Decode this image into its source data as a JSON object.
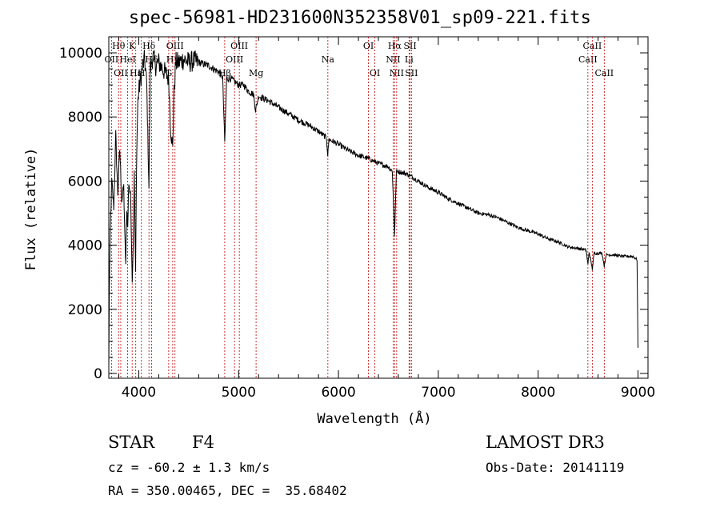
{
  "chart_data": {
    "type": "line",
    "title": "spec-56981-HD231600N352358V01_sp09-221.fits",
    "xlabel": "Wavelength (Å)",
    "ylabel": "Flux (relative)",
    "xlim": [
      3700,
      9100
    ],
    "ylim": [
      -150,
      10500
    ],
    "xticks": [
      4000,
      5000,
      6000,
      7000,
      8000,
      9000
    ],
    "yticks": [
      0,
      2000,
      4000,
      6000,
      8000,
      10000
    ],
    "series": [
      {
        "name": "spectrum",
        "points": [
          [
            3700,
            200
          ],
          [
            3705,
            2500
          ],
          [
            3715,
            4500
          ],
          [
            3730,
            6000
          ],
          [
            3750,
            5200
          ],
          [
            3770,
            7400
          ],
          [
            3790,
            5600
          ],
          [
            3810,
            7000
          ],
          [
            3830,
            5400
          ],
          [
            3850,
            5800
          ],
          [
            3860,
            4300
          ],
          [
            3870,
            3400
          ],
          [
            3880,
            5200
          ],
          [
            3890,
            4500
          ],
          [
            3900,
            6000
          ],
          [
            3920,
            5400
          ],
          [
            3935,
            2800
          ],
          [
            3945,
            4200
          ],
          [
            3955,
            6200
          ],
          [
            3968,
            3100
          ],
          [
            3980,
            7000
          ],
          [
            3990,
            8400
          ],
          [
            4000,
            8800
          ],
          [
            4020,
            9200
          ],
          [
            4040,
            9600
          ],
          [
            4060,
            9800
          ],
          [
            4080,
            9000
          ],
          [
            4090,
            7500
          ],
          [
            4102,
            5800
          ],
          [
            4115,
            9500
          ],
          [
            4140,
            9900
          ],
          [
            4170,
            9600
          ],
          [
            4200,
            9700
          ],
          [
            4240,
            9500
          ],
          [
            4280,
            9300
          ],
          [
            4300,
            9200
          ],
          [
            4320,
            7600
          ],
          [
            4340,
            7000
          ],
          [
            4350,
            8500
          ],
          [
            4370,
            9700
          ],
          [
            4400,
            9700
          ],
          [
            4450,
            9800
          ],
          [
            4500,
            9700
          ],
          [
            4550,
            9750
          ],
          [
            4600,
            9700
          ],
          [
            4650,
            9650
          ],
          [
            4700,
            9600
          ],
          [
            4750,
            9500
          ],
          [
            4800,
            9400
          ],
          [
            4840,
            9250
          ],
          [
            4861,
            7200
          ],
          [
            4880,
            9200
          ],
          [
            4920,
            9200
          ],
          [
            4960,
            9100
          ],
          [
            5000,
            9000
          ],
          [
            5050,
            9000
          ],
          [
            5100,
            8800
          ],
          [
            5150,
            8700
          ],
          [
            5170,
            8200
          ],
          [
            5200,
            8650
          ],
          [
            5300,
            8500
          ],
          [
            5400,
            8300
          ],
          [
            5500,
            8100
          ],
          [
            5600,
            7900
          ],
          [
            5700,
            7750
          ],
          [
            5800,
            7550
          ],
          [
            5880,
            7350
          ],
          [
            5893,
            6800
          ],
          [
            5905,
            7300
          ],
          [
            6000,
            7150
          ],
          [
            6100,
            6950
          ],
          [
            6200,
            6800
          ],
          [
            6300,
            6700
          ],
          [
            6400,
            6550
          ],
          [
            6500,
            6450
          ],
          [
            6540,
            6300
          ],
          [
            6562,
            4300
          ],
          [
            6580,
            6300
          ],
          [
            6600,
            6300
          ],
          [
            6700,
            6200
          ],
          [
            6800,
            6000
          ],
          [
            6900,
            5800
          ],
          [
            7000,
            5650
          ],
          [
            7100,
            5450
          ],
          [
            7200,
            5300
          ],
          [
            7300,
            5150
          ],
          [
            7400,
            5000
          ],
          [
            7500,
            4950
          ],
          [
            7600,
            4850
          ],
          [
            7700,
            4700
          ],
          [
            7800,
            4550
          ],
          [
            7900,
            4450
          ],
          [
            8000,
            4350
          ],
          [
            8100,
            4200
          ],
          [
            8200,
            4100
          ],
          [
            8300,
            3950
          ],
          [
            8400,
            3900
          ],
          [
            8480,
            3850
          ],
          [
            8498,
            3400
          ],
          [
            8510,
            3800
          ],
          [
            8542,
            3250
          ],
          [
            8560,
            3750
          ],
          [
            8600,
            3750
          ],
          [
            8640,
            3750
          ],
          [
            8662,
            3350
          ],
          [
            8680,
            3700
          ],
          [
            8750,
            3700
          ],
          [
            8850,
            3650
          ],
          [
            8950,
            3650
          ],
          [
            8990,
            3550
          ],
          [
            9000,
            800
          ]
        ]
      }
    ],
    "lines": [
      {
        "wave": 3727,
        "label": "OII",
        "row": 2
      },
      {
        "wave": 3798,
        "label": "Hθ",
        "row": 1
      },
      {
        "wave": 3820,
        "label": "OII",
        "row": 3
      },
      {
        "wave": 3889,
        "label": "HeI",
        "row": 2
      },
      {
        "wave": 3934,
        "label": "K",
        "row": 1
      },
      {
        "wave": 3970,
        "label": "Hε",
        "row": 3
      },
      {
        "wave": 4026,
        "label": "H",
        "row": 3
      },
      {
        "wave": 4102,
        "label": "Hδ",
        "row": 1
      },
      {
        "wave": 4128,
        "label": "Hδ",
        "row": 2
      },
      {
        "wave": 4300,
        "label": "G",
        "row": 3
      },
      {
        "wave": 4340,
        "label": "Hγ",
        "row": 2
      },
      {
        "wave": 4363,
        "label": "OIII",
        "row": 1
      },
      {
        "wave": 4861,
        "label": "Hβ",
        "row": 3
      },
      {
        "wave": 4959,
        "label": "OIII",
        "row": 2
      },
      {
        "wave": 5007,
        "label": "OIII",
        "row": 1
      },
      {
        "wave": 5175,
        "label": "Mg",
        "row": 3
      },
      {
        "wave": 5894,
        "label": "Na",
        "row": 2
      },
      {
        "wave": 6300,
        "label": "OI",
        "row": 1
      },
      {
        "wave": 6364,
        "label": "OI",
        "row": 3
      },
      {
        "wave": 6548,
        "label": "NII",
        "row": 2
      },
      {
        "wave": 6563,
        "label": "Hα",
        "row": 1
      },
      {
        "wave": 6583,
        "label": "NII",
        "row": 3
      },
      {
        "wave": 6707,
        "label": "Li",
        "row": 2
      },
      {
        "wave": 6717,
        "label": "SII",
        "row": 1
      },
      {
        "wave": 6731,
        "label": "SII",
        "row": 3
      },
      {
        "wave": 8498,
        "label": "CaII",
        "row": 2
      },
      {
        "wave": 8542,
        "label": "CaII",
        "row": 1
      },
      {
        "wave": 8662,
        "label": "CaII",
        "row": 3
      }
    ]
  },
  "footer": {
    "object_type": "STAR",
    "subclass": "F4",
    "survey": "LAMOST DR3",
    "redshift": "cz = -60.2 ± 1.3 km/s",
    "obs_date": "Obs-Date: 20141119",
    "coords": "RA = 350.00465, DEC =  35.68402"
  }
}
